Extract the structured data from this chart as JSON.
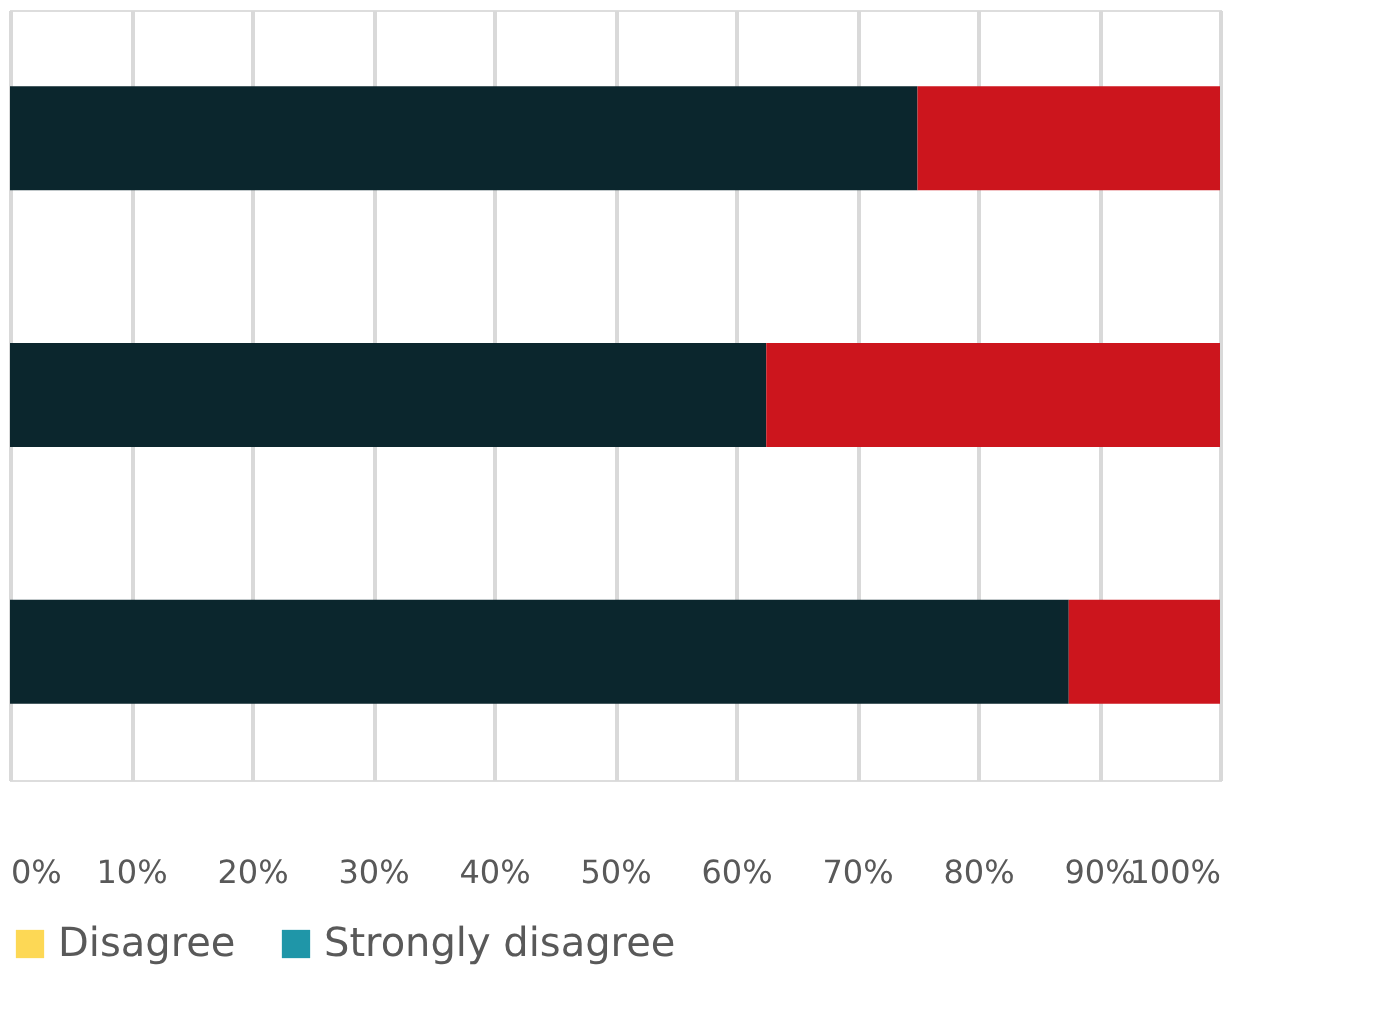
{
  "chart_data": {
    "type": "bar",
    "orientation": "horizontal",
    "stacked": true,
    "categories": [
      null,
      null,
      null
    ],
    "series": [
      {
        "color": "#0b262d",
        "values": [
          75,
          62.5,
          87.5
        ]
      },
      {
        "color": "#cc151d",
        "values": [
          25,
          37.5,
          12.5
        ]
      },
      {
        "name": "Disagree",
        "color": "#fdd855",
        "values": [
          0,
          0,
          0
        ]
      },
      {
        "name": "Strongly disagree",
        "color": "#1f96a8",
        "values": [
          0,
          0,
          0
        ]
      }
    ],
    "xlim": [
      0,
      100
    ],
    "xticks": [
      {
        "value": 0,
        "label": "0%"
      },
      {
        "value": 10,
        "label": "10%"
      },
      {
        "value": 20,
        "label": "20%"
      },
      {
        "value": 30,
        "label": "30%"
      },
      {
        "value": 40,
        "label": "40%"
      },
      {
        "value": 50,
        "label": "50%"
      },
      {
        "value": 60,
        "label": "60%"
      },
      {
        "value": 70,
        "label": "70%"
      },
      {
        "value": 80,
        "label": "80%"
      },
      {
        "value": 90,
        "label": "90%"
      },
      {
        "value": 100,
        "label": "100%"
      }
    ],
    "grid": "x",
    "legend": "bottom"
  }
}
